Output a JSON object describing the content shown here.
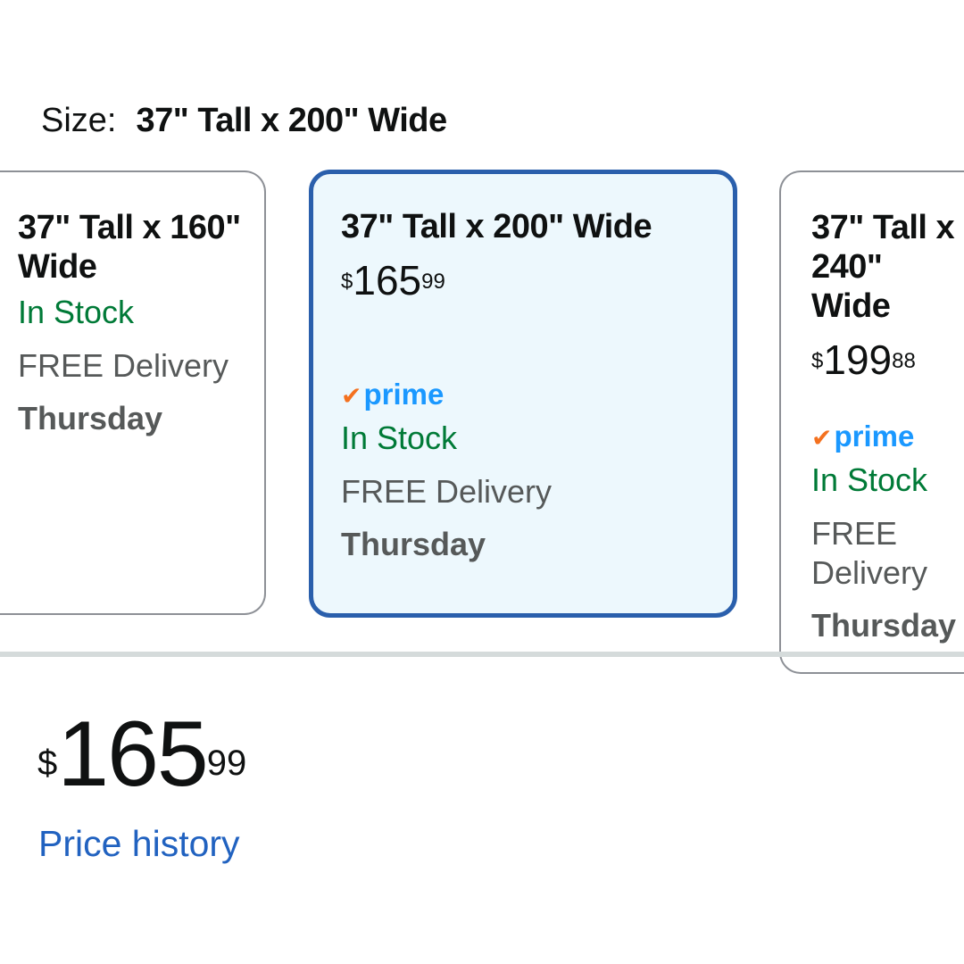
{
  "size": {
    "label": "Size:",
    "selected": "37\" Tall x 200\" Wide"
  },
  "cards": [
    {
      "title": "37\" Tall x 160\" Wide",
      "stock": "In Stock",
      "delivery": "FREE Delivery",
      "day": "Thursday",
      "selected": false
    },
    {
      "title": "37\" Tall x 200\" Wide",
      "currency": "$",
      "whole": "165",
      "fraction": "99",
      "prime": "prime",
      "stock": "In Stock",
      "delivery": "FREE Delivery",
      "day": "Thursday",
      "selected": true
    },
    {
      "title": "37\" Tall x 240\" Wide",
      "currency": "$",
      "whole": "199",
      "fraction": "88",
      "prime": "prime",
      "stock": "In Stock",
      "delivery": "FREE Delivery",
      "day": "Thursday",
      "selected": false
    }
  ],
  "price": {
    "currency": "$",
    "whole": "165",
    "fraction": "99"
  },
  "price_history_link": "Price history",
  "colors": {
    "selected_border": "#2a5fac",
    "selected_bg": "#edf8fd",
    "in_stock": "#007a37",
    "prime": "#1a98ff",
    "prime_check": "#f4711f",
    "link": "#2162c0"
  }
}
